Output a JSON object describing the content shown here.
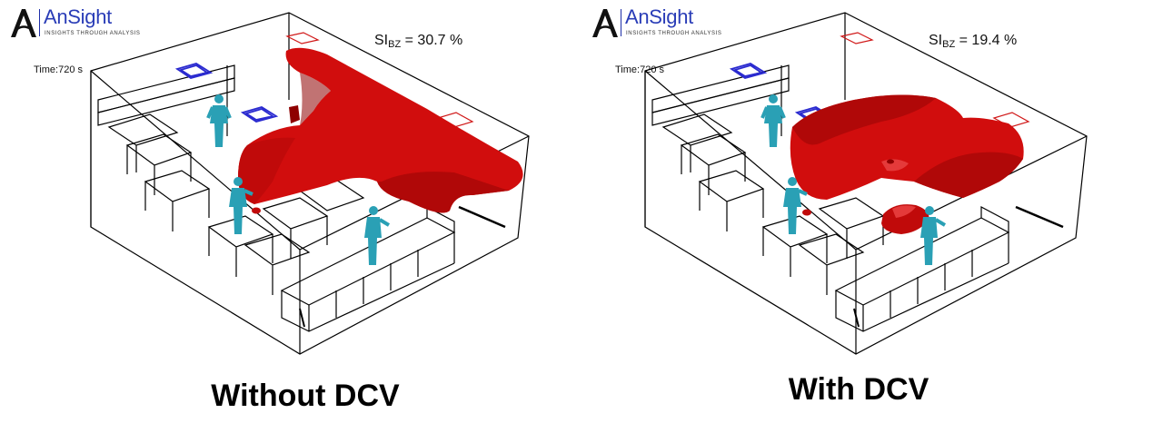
{
  "logo": {
    "name": "AnSight",
    "tagline": "INSIGHTS THROUGH ANALYSIS"
  },
  "panels": [
    {
      "time": "Time:720 s",
      "si_prefix": "SI",
      "si_sub": "BZ",
      "si_value": " = 30.7 %",
      "caption": "Without DCV"
    },
    {
      "time": "Time:720 s",
      "si_prefix": "SI",
      "si_sub": "BZ",
      "si_value": " = 19.4 %",
      "caption": "With DCV"
    }
  ],
  "colors": {
    "plume": "#d10d0d",
    "plume_dark": "#8e0000",
    "occupant": "#2aa0b5",
    "supply_diffuser": "#2b2bd0",
    "exhaust_diffuser": "#d01818",
    "wireframe": "#000000",
    "brand": "#2a3db7"
  }
}
